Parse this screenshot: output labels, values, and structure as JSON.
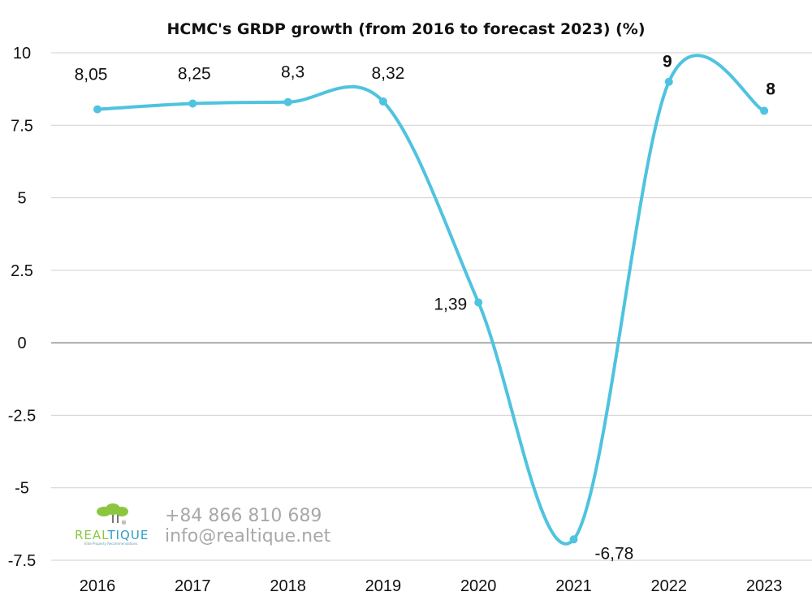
{
  "chart_data": {
    "type": "line",
    "title": "HCMC's GRDP growth (from 2016 to forecast 2023) (%)",
    "categories": [
      "2016",
      "2017",
      "2018",
      "2019",
      "2020",
      "2021",
      "2022",
      "2023"
    ],
    "values": [
      8.05,
      8.25,
      8.3,
      8.32,
      1.39,
      -6.78,
      9,
      8
    ],
    "data_labels": [
      "8,05",
      "8,25",
      "8,3",
      "8,32",
      "1,39",
      "-6,78",
      "9",
      "8"
    ],
    "y_ticks": [
      "10",
      "7.5",
      "5",
      "2.5",
      "0",
      "-2.5",
      "-5",
      "-7.5"
    ],
    "ylim": [
      -7.5,
      10
    ],
    "grid": true,
    "smooth": true,
    "line_color": "#4fc3df",
    "highlight_color": "#e8231f",
    "label_color": "#111111"
  },
  "branding": {
    "logo_text": "REALTIQUE",
    "logo_text_a": "REAL",
    "logo_text_b": "TIQUE",
    "logo_tagline": "Elite Property Recommendations",
    "phone": "+84 866 810 689",
    "email": "info@realtique.net",
    "logo_green": "#8cc63f",
    "logo_blue": "#2f9fc6"
  }
}
